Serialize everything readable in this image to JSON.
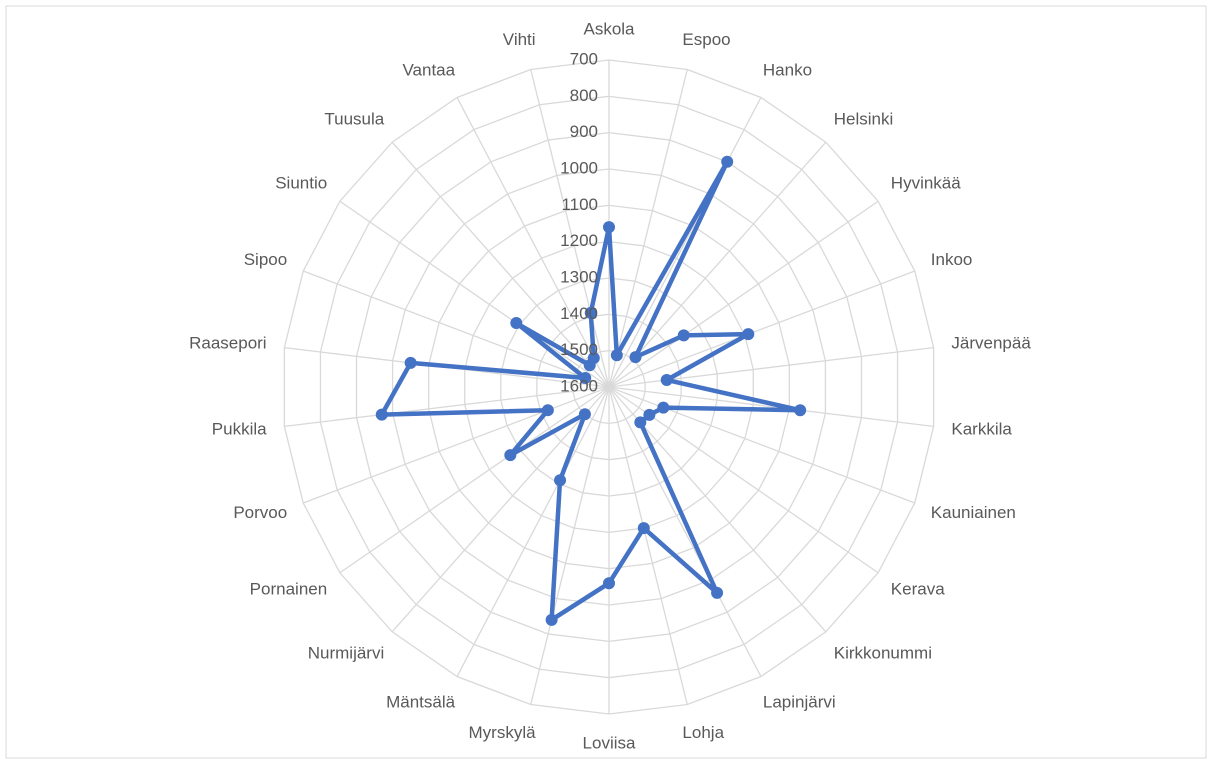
{
  "chart_data": {
    "type": "radar",
    "categories": [
      "Askola",
      "Espoo",
      "Hanko",
      "Helsinki",
      "Hyvinkää",
      "Inkoo",
      "Järvenpää",
      "Karkkila",
      "Kauniainen",
      "Kerava",
      "Kirkkonummi",
      "Lapinjärvi",
      "Lohja",
      "Loviisa",
      "Myrskylä",
      "Mäntsälä",
      "Nurmijärvi",
      "Pornainen",
      "Porvoo",
      "Pukkila",
      "Raasepori",
      "Sipoo",
      "Siuntio",
      "Tuusula",
      "Vantaa",
      "Vihti"
    ],
    "values": [
      1160,
      1510,
      900,
      1490,
      1350,
      1190,
      1440,
      1070,
      1440,
      1465,
      1470,
      960,
      1200,
      1060,
      940,
      1310,
      1500,
      1270,
      1420,
      970,
      1050,
      1530,
      1290,
      1520,
      1510,
      1390
    ],
    "color": "#4472c4",
    "ylim": [
      1600,
      700
    ],
    "yticks": [
      700,
      800,
      900,
      1000,
      1100,
      1200,
      1300,
      1400,
      1500,
      1600
    ],
    "grid": true
  }
}
